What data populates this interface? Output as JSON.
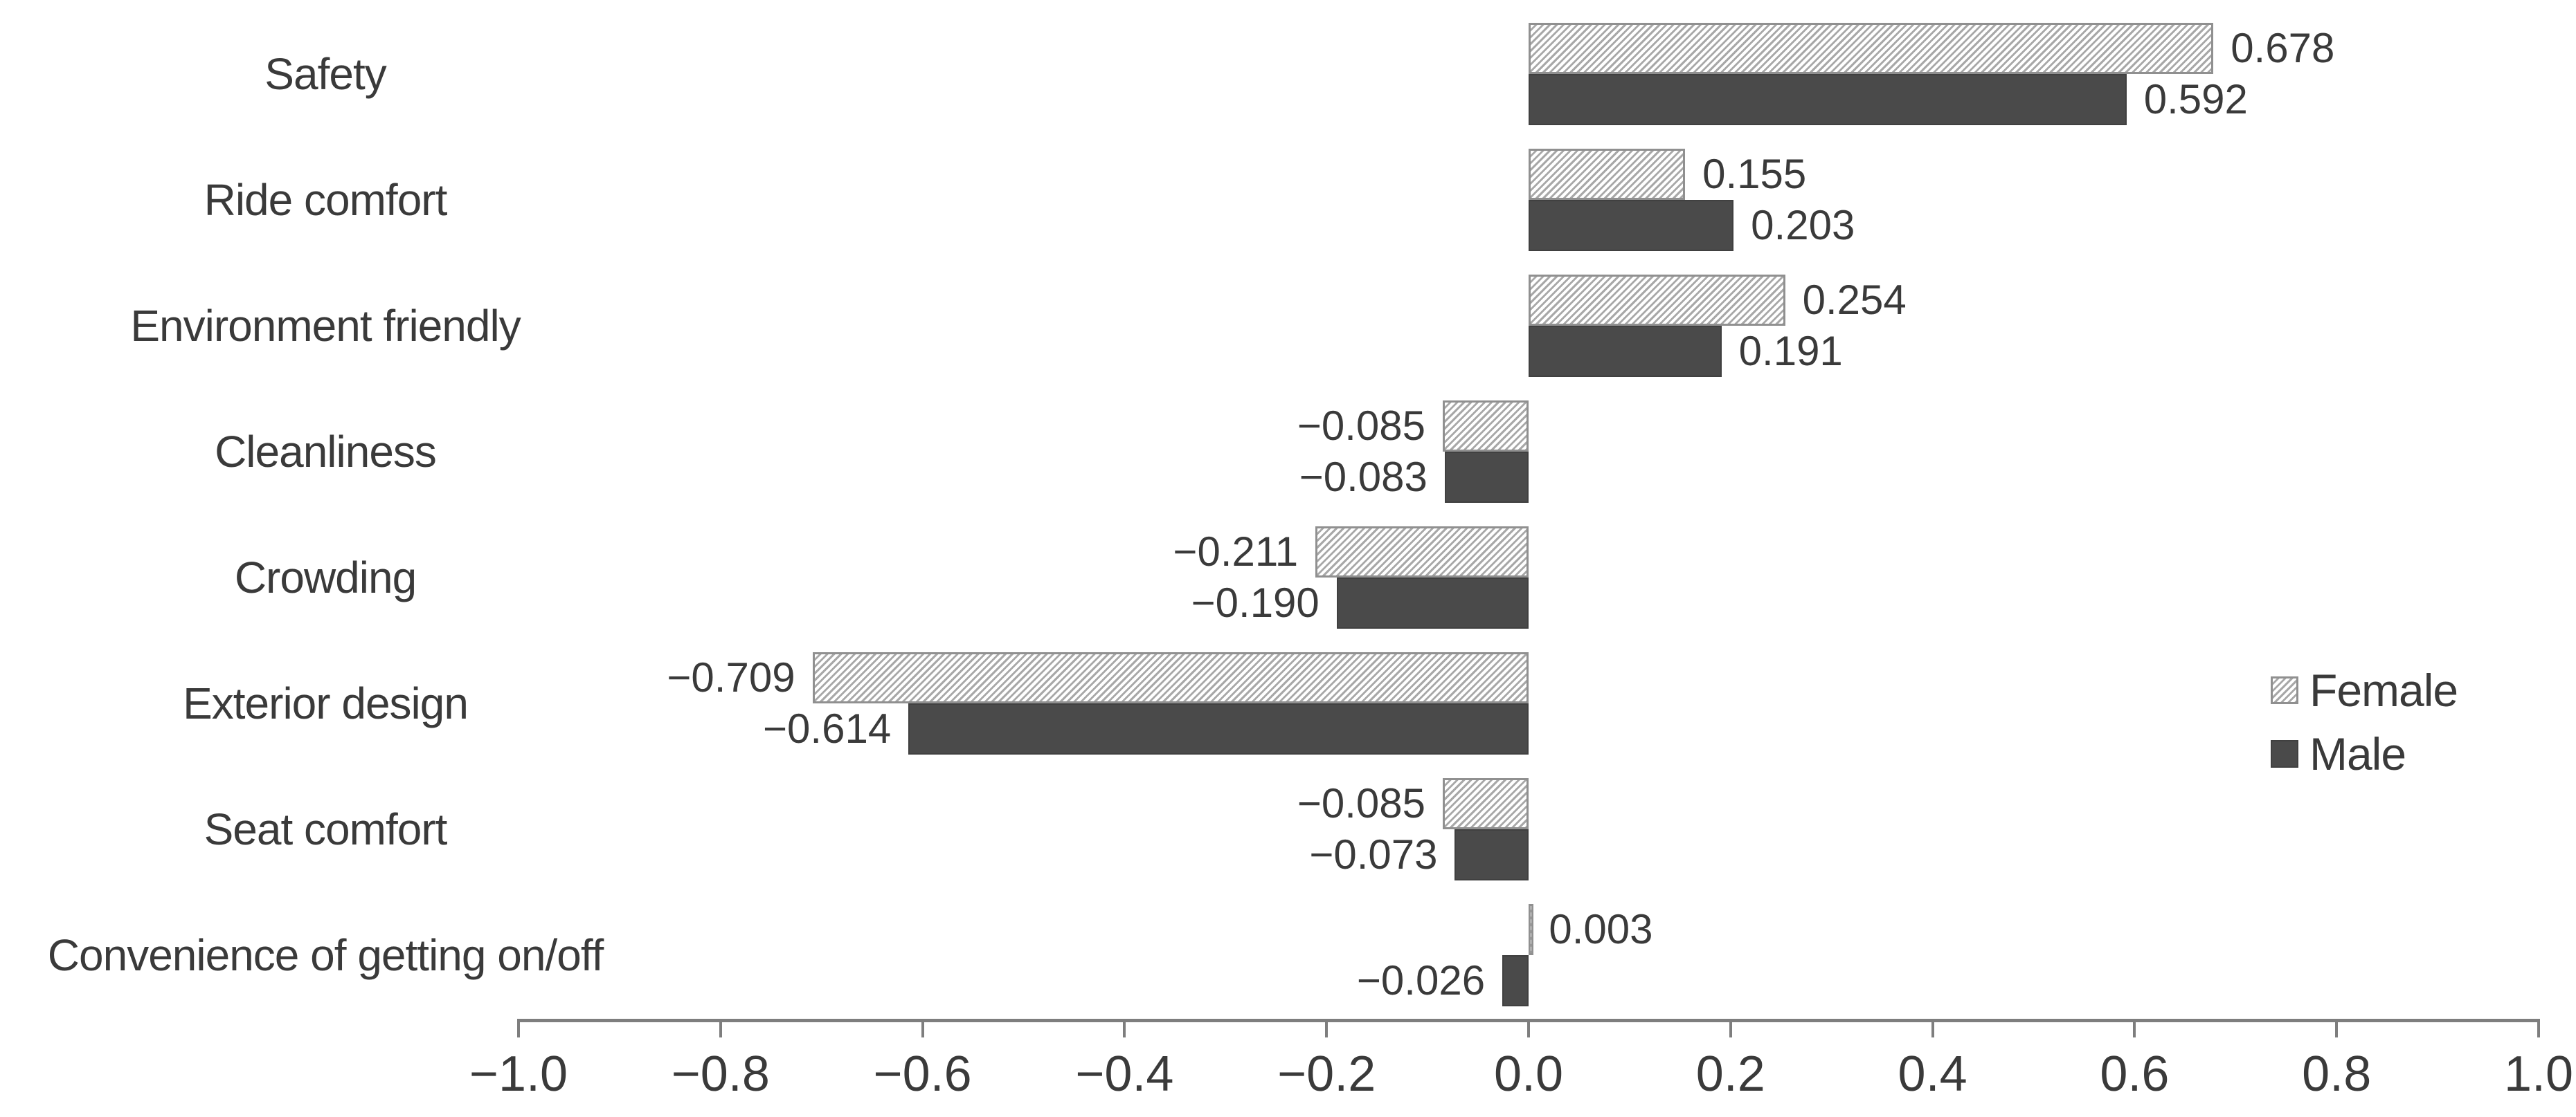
{
  "chart_data": {
    "type": "bar",
    "orientation": "horizontal",
    "title": "",
    "xlabel": "",
    "ylabel": "",
    "grid": false,
    "categories": [
      "Safety",
      "Ride comfort",
      "Environment friendly",
      "Cleanliness",
      "Crowding",
      "Exterior design",
      "Seat comfort",
      "Convenience of getting on/off"
    ],
    "series": [
      {
        "name": "Female",
        "style": "hatched",
        "values": [
          0.678,
          0.155,
          0.254,
          -0.085,
          -0.211,
          -0.709,
          -0.085,
          0.003
        ],
        "labels": [
          "0.678",
          "0.155",
          "0.254",
          "−0.085",
          "−0.211",
          "−0.709",
          "−0.085",
          "0.003"
        ]
      },
      {
        "name": "Male",
        "style": "solid",
        "values": [
          0.592,
          0.203,
          0.191,
          -0.083,
          -0.19,
          -0.614,
          -0.073,
          -0.026
        ],
        "labels": [
          "0.592",
          "0.203",
          "0.191",
          "−0.083",
          "−0.190",
          "−0.614",
          "−0.073",
          "−0.026"
        ]
      }
    ],
    "xlim": [
      -1.0,
      1.0
    ],
    "x_ticks": [
      -1.0,
      -0.8,
      -0.6,
      -0.4,
      -0.2,
      0.0,
      0.2,
      0.4,
      0.6,
      0.8,
      1.0
    ],
    "x_tick_labels": [
      "−1.0",
      "−0.8",
      "−0.6",
      "−0.4",
      "−0.2",
      "0.0",
      "0.2",
      "0.4",
      "0.6",
      "0.8",
      "1.0"
    ],
    "legend": {
      "position": "right",
      "entries": [
        "Female",
        "Male"
      ]
    }
  },
  "colors": {
    "male_fill": "#4a4a4a",
    "male_border": "#404040",
    "female_bg": "#ffffff",
    "female_hatch": "#a8a8a8",
    "female_border": "#909090",
    "axis": "#7e7e7e",
    "text": "#3a3a3a"
  }
}
